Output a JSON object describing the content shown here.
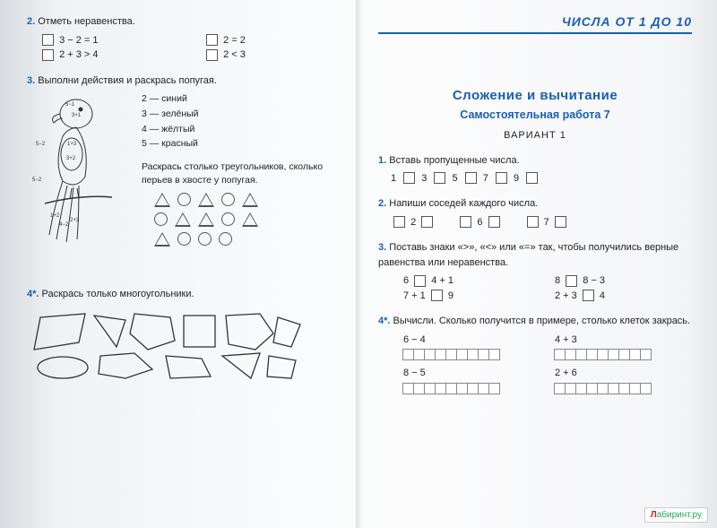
{
  "left": {
    "t2": {
      "num": "2.",
      "title": "Отметь неравенства.",
      "items": [
        "3 − 2 = 1",
        "2 = 2",
        "2 + 3 > 4",
        "2 < 3"
      ]
    },
    "t3": {
      "num": "3.",
      "title": "Выполни действия и раскрась попугая.",
      "legend": [
        "2 — синий",
        "3 — зелёный",
        "4 — жёлтый",
        "5 — красный"
      ],
      "note": "Раскрась столько треугольников, сколько перьев в хвосте у попугая.",
      "parrot_labels": [
        "5−2",
        "5−1",
        "3+2",
        "3+1",
        "5−2",
        "1+3",
        "1+2",
        "4−2",
        "2+3"
      ]
    },
    "t4": {
      "num": "4*.",
      "title": "Раскрась только многоугольники."
    }
  },
  "right": {
    "header": "ЧИСЛА ОТ 1 ДО 10",
    "section": "Сложение и вычитание",
    "subtitle": "Самостоятельная работа 7",
    "variant": "ВАРИАНТ 1",
    "t1": {
      "num": "1.",
      "title": "Вставь пропущенные числа.",
      "seq": "1 □ 3 □ 5 □ 7 □ 9 □"
    },
    "t2": {
      "num": "2.",
      "title": "Напиши соседей каждого числа.",
      "vals": [
        "2",
        "6",
        "7"
      ]
    },
    "t3": {
      "num": "3.",
      "title": "Поставь знаки «>», «<» или «=» так, чтобы получились верные равенства или неравенства.",
      "left": [
        "6 □ 4 + 1",
        "7 + 1 □ 9"
      ],
      "right": [
        "8 □ 8 − 3",
        "2 + 3 □ 4"
      ]
    },
    "t4": {
      "num": "4*.",
      "title": "Вычисли. Сколько получится в примере, столько клеток закрась.",
      "left": [
        "6 − 4",
        "8 − 5"
      ],
      "right": [
        "4 + 3",
        "2 + 6"
      ]
    }
  },
  "style": {
    "accent": "#1a5fb4",
    "text": "#222222",
    "box_border": "#555555",
    "grid_border": "#888888",
    "bg": "#fafbfc"
  },
  "watermark": {
    "a": "Л",
    "b": "абиринт.ру"
  }
}
